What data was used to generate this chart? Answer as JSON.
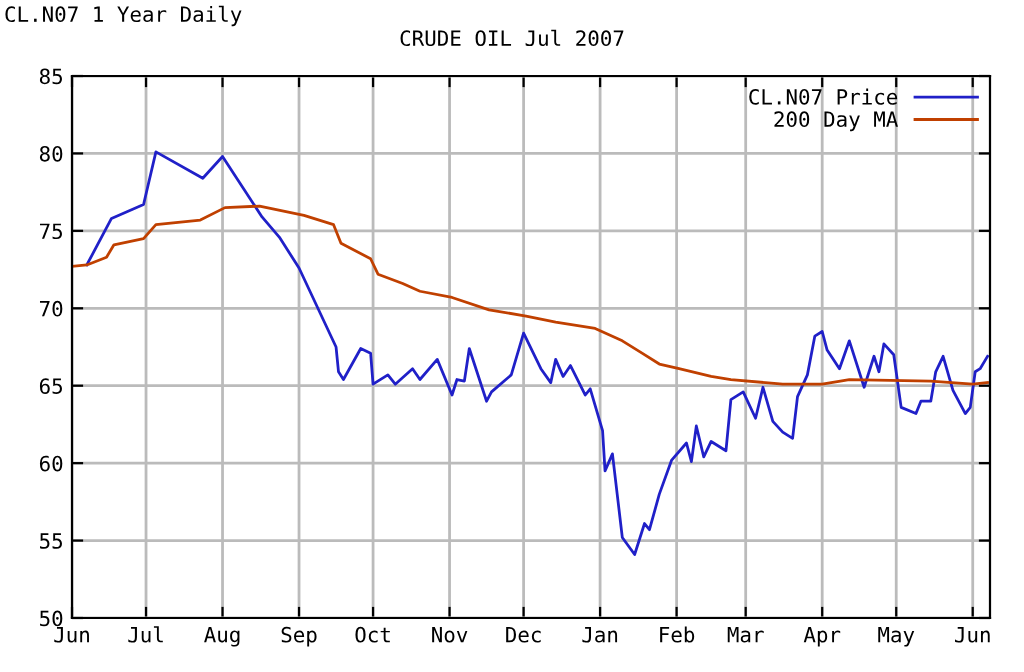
{
  "chart_data": {
    "type": "line",
    "title": "CRUDE OIL Jul 2007",
    "annotations": [
      "CL.N07 1 Year Daily"
    ],
    "xlim": [
      "2006-06-01",
      "2007-06-08"
    ],
    "xticks": [
      {
        "value": "2006-06-01",
        "label": "Jun"
      },
      {
        "value": "2006-07-01",
        "label": "Jul"
      },
      {
        "value": "2006-08-01",
        "label": "Aug"
      },
      {
        "value": "2006-09-01",
        "label": "Sep"
      },
      {
        "value": "2006-10-01",
        "label": "Oct"
      },
      {
        "value": "2006-11-01",
        "label": "Nov"
      },
      {
        "value": "2006-12-01",
        "label": "Dec"
      },
      {
        "value": "2007-01-01",
        "label": "Jan"
      },
      {
        "value": "2007-02-01",
        "label": "Feb"
      },
      {
        "value": "2007-03-01",
        "label": "Mar"
      },
      {
        "value": "2007-04-01",
        "label": "Apr"
      },
      {
        "value": "2007-05-01",
        "label": "May"
      },
      {
        "value": "2007-06-01",
        "label": "Jun"
      }
    ],
    "ylim": [
      50,
      85
    ],
    "yticks": [
      50,
      55,
      60,
      65,
      70,
      75,
      80,
      85
    ],
    "grid": true,
    "legend": "top right",
    "line_style": "solid",
    "series": [
      {
        "name": "CL.N07 Price",
        "color": "#2020c8",
        "x": [
          "2006-06-07",
          "2006-06-17",
          "2006-06-30",
          "2006-07-05",
          "2006-07-24",
          "2006-08-01",
          "2006-08-17",
          "2006-08-24",
          "2006-09-01",
          "2006-09-16",
          "2006-09-17",
          "2006-09-19",
          "2006-09-26",
          "2006-09-30",
          "2006-10-01",
          "2006-10-07",
          "2006-10-10",
          "2006-10-17",
          "2006-10-20",
          "2006-10-27",
          "2006-11-02",
          "2006-11-04",
          "2006-11-07",
          "2006-11-09",
          "2006-11-16",
          "2006-11-18",
          "2006-11-26",
          "2006-12-01",
          "2006-12-08",
          "2006-12-12",
          "2006-12-14",
          "2006-12-17",
          "2006-12-20",
          "2006-12-26",
          "2006-12-28",
          "2007-01-02",
          "2007-01-03",
          "2007-01-06",
          "2007-01-10",
          "2007-01-15",
          "2007-01-19",
          "2007-01-21",
          "2007-01-25",
          "2007-01-30",
          "2007-02-05",
          "2007-02-07",
          "2007-02-09",
          "2007-02-12",
          "2007-02-15",
          "2007-02-21",
          "2007-02-23",
          "2007-02-28",
          "2007-03-05",
          "2007-03-08",
          "2007-03-12",
          "2007-03-16",
          "2007-03-20",
          "2007-03-22",
          "2007-03-26",
          "2007-03-29",
          "2007-04-01",
          "2007-04-03",
          "2007-04-08",
          "2007-04-12",
          "2007-04-18",
          "2007-04-22",
          "2007-04-24",
          "2007-04-26",
          "2007-04-30",
          "2007-05-03",
          "2007-05-09",
          "2007-05-11",
          "2007-05-15",
          "2007-05-17",
          "2007-05-20",
          "2007-05-24",
          "2007-05-29",
          "2007-05-31",
          "2007-06-02",
          "2007-06-04",
          "2007-06-07"
        ],
        "values": [
          72.8,
          75.8,
          76.7,
          80.1,
          78.4,
          79.8,
          75.9,
          74.6,
          72.6,
          67.5,
          65.9,
          65.4,
          67.4,
          67.1,
          65.1,
          65.7,
          65.1,
          66.1,
          65.4,
          66.7,
          64.4,
          65.4,
          65.3,
          67.4,
          64.0,
          64.6,
          65.7,
          68.4,
          66.1,
          65.2,
          66.7,
          65.6,
          66.3,
          64.4,
          64.8,
          62.1,
          59.5,
          60.6,
          55.2,
          54.1,
          56.1,
          55.7,
          58.0,
          60.2,
          61.3,
          60.1,
          62.4,
          60.4,
          61.4,
          60.8,
          64.1,
          64.6,
          62.9,
          64.9,
          62.7,
          62.0,
          61.6,
          64.3,
          65.7,
          68.2,
          68.5,
          67.3,
          66.1,
          67.9,
          64.9,
          66.9,
          65.9,
          67.7,
          67.0,
          63.6,
          63.2,
          64.0,
          64.0,
          65.9,
          66.9,
          64.7,
          63.2,
          63.6,
          65.9,
          66.1,
          66.9
        ]
      },
      {
        "name": "200 Day MA",
        "color": "#c04000",
        "x": [
          "2006-06-01",
          "2006-06-07",
          "2006-06-15",
          "2006-06-18",
          "2006-06-30",
          "2006-07-05",
          "2006-07-23",
          "2006-08-02",
          "2006-08-16",
          "2006-09-03",
          "2006-09-15",
          "2006-09-18",
          "2006-09-30",
          "2006-10-03",
          "2006-10-13",
          "2006-10-20",
          "2006-11-02",
          "2006-11-17",
          "2006-12-02",
          "2006-12-14",
          "2006-12-30",
          "2007-01-10",
          "2007-01-18",
          "2007-01-25",
          "2007-02-02",
          "2007-02-15",
          "2007-02-23",
          "2007-03-09",
          "2007-03-16",
          "2007-04-01",
          "2007-04-12",
          "2007-05-15",
          "2007-06-01",
          "2007-06-07"
        ],
        "values": [
          72.7,
          72.8,
          73.3,
          74.1,
          74.5,
          75.4,
          75.7,
          76.5,
          76.6,
          76.0,
          75.4,
          74.2,
          73.2,
          72.2,
          71.6,
          71.1,
          70.7,
          69.9,
          69.5,
          69.1,
          68.7,
          67.9,
          67.1,
          66.4,
          66.1,
          65.6,
          65.4,
          65.2,
          65.1,
          65.1,
          65.4,
          65.3,
          65.1,
          65.2
        ]
      }
    ]
  }
}
